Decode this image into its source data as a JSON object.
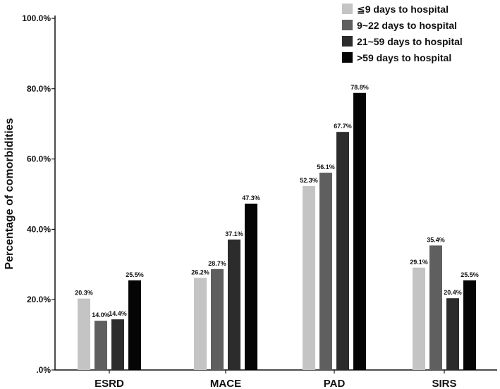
{
  "chart_data": {
    "type": "bar",
    "title": "",
    "xlabel": "",
    "ylabel": "Percentage of comorbidities",
    "ylim": [
      0,
      100
    ],
    "yticks": [
      0,
      20,
      40,
      60,
      80,
      100
    ],
    "ytick_labels": [
      ".0%",
      "20.0%",
      "40.0%",
      "60.0%",
      "80.0%",
      "100.0%"
    ],
    "categories": [
      "ESRD",
      "MACE",
      "PAD",
      "SIRS"
    ],
    "legend_position": "top-right",
    "series": [
      {
        "name": "≦9 days to hospital",
        "color": "#c4c4c4",
        "values": [
          20.3,
          26.2,
          52.3,
          29.1
        ],
        "labels": [
          "20.3%",
          "26.2%",
          "52.3%",
          "29.1%"
        ]
      },
      {
        "name": "9~22 days to hospital",
        "color": "#5f5f5f",
        "values": [
          14.0,
          28.7,
          56.1,
          35.4
        ],
        "labels": [
          "14.0%",
          "28.7%",
          "56.1%",
          "35.4%"
        ]
      },
      {
        "name": "21~59 days to hospital",
        "color": "#2c2c2c",
        "values": [
          14.4,
          37.1,
          67.7,
          20.4
        ],
        "labels": [
          "14.4%",
          "37.1%",
          "67.7%",
          "20.4%"
        ]
      },
      {
        "name": ">59 days to hospital",
        "color": "#050505",
        "values": [
          25.5,
          47.3,
          78.8,
          25.5
        ],
        "labels": [
          "25.5%",
          "47.3%",
          "78.8%",
          "25.5%"
        ]
      }
    ]
  }
}
